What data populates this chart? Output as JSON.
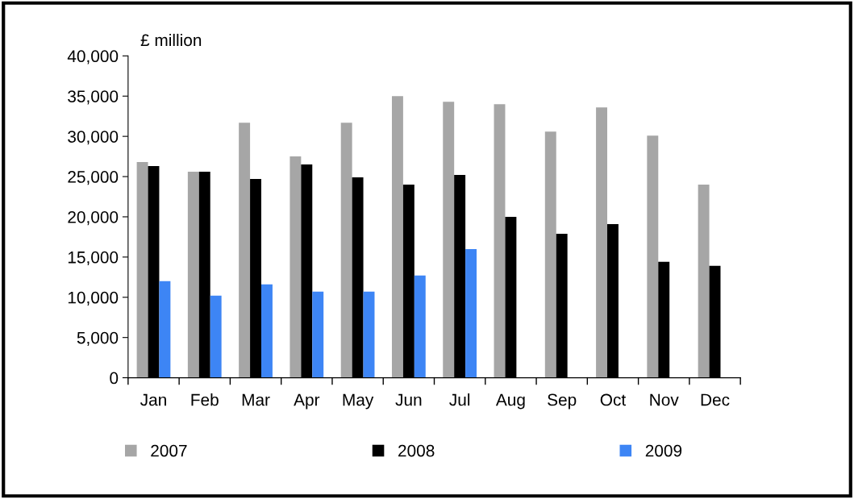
{
  "chart_data": {
    "type": "bar",
    "ylabel": "£ million",
    "categories": [
      "Jan",
      "Feb",
      "Mar",
      "Apr",
      "May",
      "Jun",
      "Jul",
      "Aug",
      "Sep",
      "Oct",
      "Nov",
      "Dec"
    ],
    "series": [
      {
        "name": "2007",
        "color": "#a6a6a6",
        "values": [
          26800,
          25600,
          31700,
          27500,
          31700,
          35000,
          34300,
          34000,
          30600,
          33600,
          30100,
          24000
        ]
      },
      {
        "name": "2008",
        "color": "#000000",
        "values": [
          26300,
          25600,
          24700,
          26500,
          24900,
          24000,
          25200,
          20000,
          17900,
          19100,
          14400,
          13900
        ]
      },
      {
        "name": "2009",
        "color": "#3d85f5",
        "values": [
          12000,
          10200,
          11600,
          10700,
          10700,
          12700,
          16000,
          null,
          null,
          null,
          null,
          null
        ]
      }
    ],
    "ylim": [
      0,
      40000
    ],
    "yticks": [
      {
        "value": 0,
        "label": "0"
      },
      {
        "value": 5000,
        "label": "5,000"
      },
      {
        "value": 10000,
        "label": "10,000"
      },
      {
        "value": 15000,
        "label": "15,000"
      },
      {
        "value": 20000,
        "label": "20,000"
      },
      {
        "value": 25000,
        "label": "25,000"
      },
      {
        "value": 30000,
        "label": "30,000"
      },
      {
        "value": 35000,
        "label": "35,000"
      },
      {
        "value": 40000,
        "label": "40,000"
      }
    ],
    "grid": false,
    "legend": "bottom"
  }
}
